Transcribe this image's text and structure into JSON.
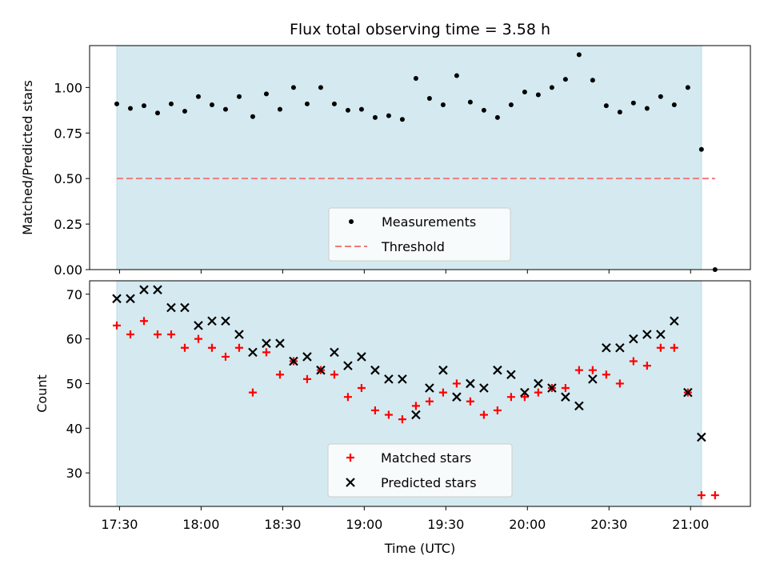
{
  "chart_data": {
    "type": "scatter",
    "title": "Flux total observing time = 3.58 h",
    "xlabel": "Time (UTC)",
    "x_tick_labels": [
      "17:30",
      "18:00",
      "18:30",
      "19:00",
      "19:30",
      "20:00",
      "20:30",
      "21:00"
    ],
    "x_ticks": [
      "17:30",
      "18:00",
      "18:30",
      "19:00",
      "19:30",
      "20:00",
      "20:30",
      "21:00"
    ],
    "xlim": [
      "17:19",
      "21:22"
    ],
    "shaded_interval": [
      "17:29",
      "21:04"
    ],
    "shade_color": "#d4eaf0",
    "x_times": [
      "17:29",
      "17:34",
      "17:39",
      "17:44",
      "17:49",
      "17:54",
      "17:59",
      "18:04",
      "18:09",
      "18:14",
      "18:19",
      "18:24",
      "18:29",
      "18:34",
      "18:39",
      "18:44",
      "18:49",
      "18:54",
      "18:59",
      "19:04",
      "19:09",
      "19:14",
      "19:19",
      "19:24",
      "19:29",
      "19:34",
      "19:39",
      "19:44",
      "19:49",
      "19:54",
      "19:59",
      "20:04",
      "20:09",
      "20:14",
      "20:19",
      "20:24",
      "20:29",
      "20:34",
      "20:39",
      "20:44",
      "20:49",
      "20:54",
      "20:59",
      "21:04",
      "21:09"
    ],
    "panels": [
      {
        "ylabel": "Matched/Predicted stars",
        "ylim": [
          0,
          1.23
        ],
        "y_ticks": [
          0.0,
          0.25,
          0.5,
          0.75,
          1.0
        ],
        "y_tick_labels": [
          "0.00",
          "0.25",
          "0.50",
          "0.75",
          "1.00"
        ],
        "threshold": 0.5,
        "series": [
          {
            "name": "Measurements",
            "marker": "dot",
            "color": "#000000",
            "values": [
              0.91,
              0.885,
              0.9,
              0.86,
              0.91,
              0.87,
              0.95,
              0.905,
              0.88,
              0.95,
              0.84,
              0.965,
              0.88,
              1.0,
              0.91,
              1.0,
              0.91,
              0.875,
              0.88,
              0.835,
              0.845,
              0.825,
              1.05,
              0.94,
              0.905,
              1.065,
              0.92,
              0.875,
              0.835,
              0.905,
              0.975,
              0.96,
              1.0,
              1.045,
              1.18,
              1.04,
              0.9,
              0.865,
              0.915,
              0.885,
              0.95,
              0.905,
              1.0,
              0.66,
              0.0
            ]
          },
          {
            "name": "Threshold",
            "marker": "dashed-line",
            "color": "#f07b7b",
            "values": [
              0.5,
              0.5
            ]
          }
        ]
      },
      {
        "ylabel": "Count",
        "ylim": [
          22.5,
          73
        ],
        "y_ticks": [
          30,
          40,
          50,
          60,
          70
        ],
        "y_tick_labels": [
          "30",
          "40",
          "50",
          "60",
          "70"
        ],
        "series": [
          {
            "name": "Matched stars",
            "marker": "plus",
            "color": "#ff0000",
            "values": [
              63,
              61,
              64,
              61,
              61,
              58,
              60,
              58,
              56,
              58,
              48,
              57,
              52,
              55,
              51,
              53,
              52,
              47,
              49,
              44,
              43,
              42,
              45,
              46,
              48,
              50,
              46,
              43,
              44,
              47,
              47,
              48,
              49,
              49,
              53,
              53,
              52,
              50,
              55,
              54,
              58,
              58,
              48,
              25,
              25
            ]
          },
          {
            "name": "Predicted stars",
            "marker": "x",
            "color": "#000000",
            "values": [
              69,
              69,
              71,
              71,
              67,
              67,
              63,
              64,
              64,
              61,
              57,
              59,
              59,
              55,
              56,
              53,
              57,
              54,
              56,
              53,
              51,
              51,
              43,
              49,
              53,
              47,
              50,
              49,
              53,
              52,
              48,
              50,
              49,
              47,
              45,
              51,
              58,
              58,
              60,
              61,
              61,
              64,
              48,
              38,
              null
            ]
          }
        ]
      }
    ]
  }
}
